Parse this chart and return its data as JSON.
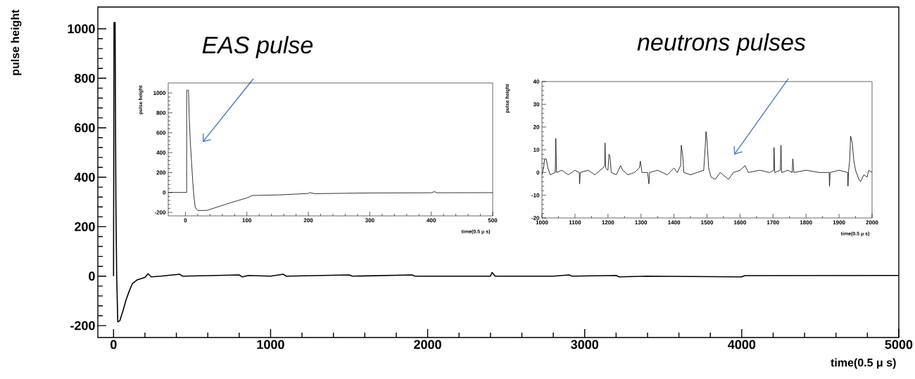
{
  "chart_data": [
    {
      "type": "line",
      "ylabel": "pulse height",
      "xlabel": "time(0.5 μ s)",
      "color": "#000000",
      "xlim": [
        -100,
        5000
      ],
      "ylim": [
        -248,
        1088
      ],
      "xticks": [
        0,
        1000,
        2000,
        3000,
        4000,
        5000
      ],
      "yticks": [
        -200,
        0,
        200,
        400,
        600,
        800,
        1000
      ],
      "annotations": [
        "EAS pulse",
        "neutrons pulses"
      ],
      "x": [
        0,
        3,
        10,
        12,
        15,
        20,
        27,
        40,
        60,
        80,
        100,
        120,
        150,
        200,
        220,
        240,
        300,
        420,
        440,
        600,
        800,
        820,
        860,
        1000,
        1080,
        1100,
        1500,
        1520,
        1900,
        1920,
        2400,
        2410,
        2430,
        2800,
        2900,
        2920,
        3200,
        3220,
        3400,
        4000,
        4020,
        5000
      ],
      "values": [
        0,
        1025,
        1025,
        700,
        300,
        0,
        -185,
        -180,
        -140,
        -95,
        -60,
        -30,
        -15,
        -5,
        10,
        -3,
        0,
        8,
        0,
        2,
        5,
        -3,
        3,
        0,
        8,
        0,
        5,
        0,
        5,
        0,
        0,
        15,
        0,
        0,
        5,
        0,
        3,
        -3,
        0,
        -3,
        2,
        3
      ]
    },
    {
      "type": "line",
      "ylabel": "pulse height",
      "xlabel": "time(0.5 μ s)",
      "color": "#000000",
      "xlim": [
        -28,
        500
      ],
      "ylim": [
        -235,
        1100
      ],
      "xticks": [
        0,
        100,
        200,
        300,
        400,
        500
      ],
      "yticks": [
        -200,
        0,
        200,
        400,
        600,
        800,
        1000
      ],
      "x": [
        -28,
        2,
        2,
        5,
        6,
        8,
        10,
        12,
        14,
        16,
        20,
        35,
        50,
        75,
        100,
        105,
        110,
        150,
        200,
        202,
        210,
        300,
        400,
        405,
        410,
        500
      ],
      "values": [
        0,
        0,
        1030,
        1030,
        780,
        500,
        300,
        100,
        -50,
        -150,
        -182,
        -180,
        -150,
        -100,
        -55,
        -40,
        -30,
        -25,
        -10,
        0,
        -12,
        -5,
        -3,
        8,
        -3,
        -2
      ]
    },
    {
      "type": "line",
      "ylabel": "pulse height",
      "xlabel": "time(0.5 μ s)",
      "color": "#000000",
      "xlim": [
        1000,
        2000
      ],
      "ylim": [
        -20,
        40
      ],
      "xticks": [
        1000,
        1100,
        1200,
        1300,
        1400,
        1500,
        1600,
        1700,
        1800,
        1900,
        2000
      ],
      "yticks": [
        -20,
        -10,
        0,
        10,
        20,
        30,
        40
      ],
      "x": [
        1000,
        1005,
        1008,
        1013,
        1018,
        1025,
        1040,
        1042,
        1044,
        1060,
        1080,
        1100,
        1113,
        1114,
        1116,
        1140,
        1160,
        1185,
        1190,
        1191,
        1193,
        1200,
        1203,
        1206,
        1210,
        1225,
        1238,
        1245,
        1260,
        1280,
        1295,
        1298,
        1303,
        1320,
        1324,
        1326,
        1350,
        1380,
        1400,
        1410,
        1420,
        1422,
        1426,
        1430,
        1450,
        1470,
        1490,
        1494,
        1497,
        1500,
        1505,
        1512,
        1525,
        1540,
        1565,
        1580,
        1600,
        1615,
        1625,
        1660,
        1690,
        1702,
        1703,
        1705,
        1722,
        1724,
        1726,
        1745,
        1758,
        1760,
        1763,
        1800,
        1840,
        1870,
        1871,
        1873,
        1900,
        1926,
        1927,
        1929,
        1932,
        1935,
        1940,
        1945,
        1950,
        1960,
        1965,
        1975,
        1985,
        1990,
        2000
      ],
      "values": [
        -1,
        2,
        6,
        6,
        2,
        -1,
        0,
        15,
        0,
        1,
        -1,
        1,
        0,
        -5,
        0,
        1,
        -1,
        2,
        3,
        13,
        2,
        1,
        8,
        7,
        0,
        -1,
        3,
        1,
        -1,
        0,
        2,
        5,
        0,
        0,
        -5,
        0,
        1,
        -1,
        2,
        0,
        3,
        12,
        8,
        0,
        -1,
        0,
        1,
        10,
        18,
        14,
        2,
        -2,
        -3,
        0,
        -3,
        0,
        1,
        3,
        0,
        1,
        0,
        1,
        11,
        0,
        1,
        12,
        0,
        1,
        0,
        6,
        0,
        1,
        0,
        0,
        -6,
        0,
        1,
        0,
        -6,
        1,
        5,
        16,
        13,
        5,
        1,
        -3,
        -4,
        -1,
        -2,
        1,
        0
      ]
    }
  ]
}
